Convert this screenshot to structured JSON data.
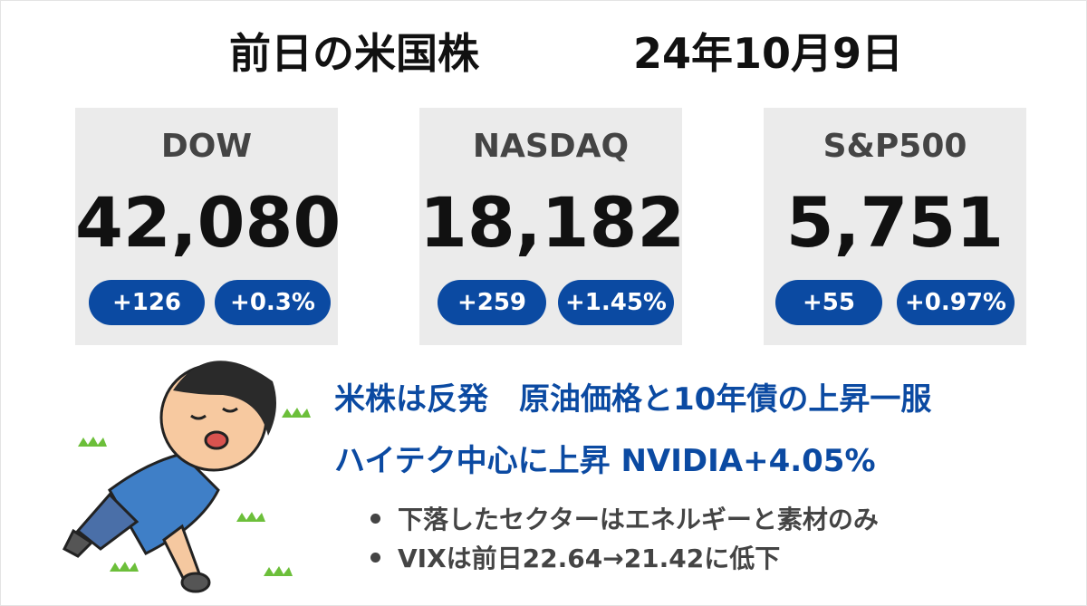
{
  "header": {
    "title": "前日の米国株",
    "date": "24年10月9日"
  },
  "cards": [
    {
      "name": "DOW",
      "value": "42,080",
      "change": "+126",
      "percent": "+0.3%"
    },
    {
      "name": "NASDAQ",
      "value": "18,182",
      "change": "+259",
      "percent": "+1.45%"
    },
    {
      "name": "S&P500",
      "value": "5,751",
      "change": "+55",
      "percent": "+0.97%"
    }
  ],
  "headlines": [
    "米株は反発　原油価格と10年債の上昇一服",
    "ハイテク中心に上昇 NVIDIA+4.05%"
  ],
  "bullets": [
    "下落したセクターはエネルギーと素材のみ",
    "VIXは前日22.64→21.42に低下"
  ]
}
